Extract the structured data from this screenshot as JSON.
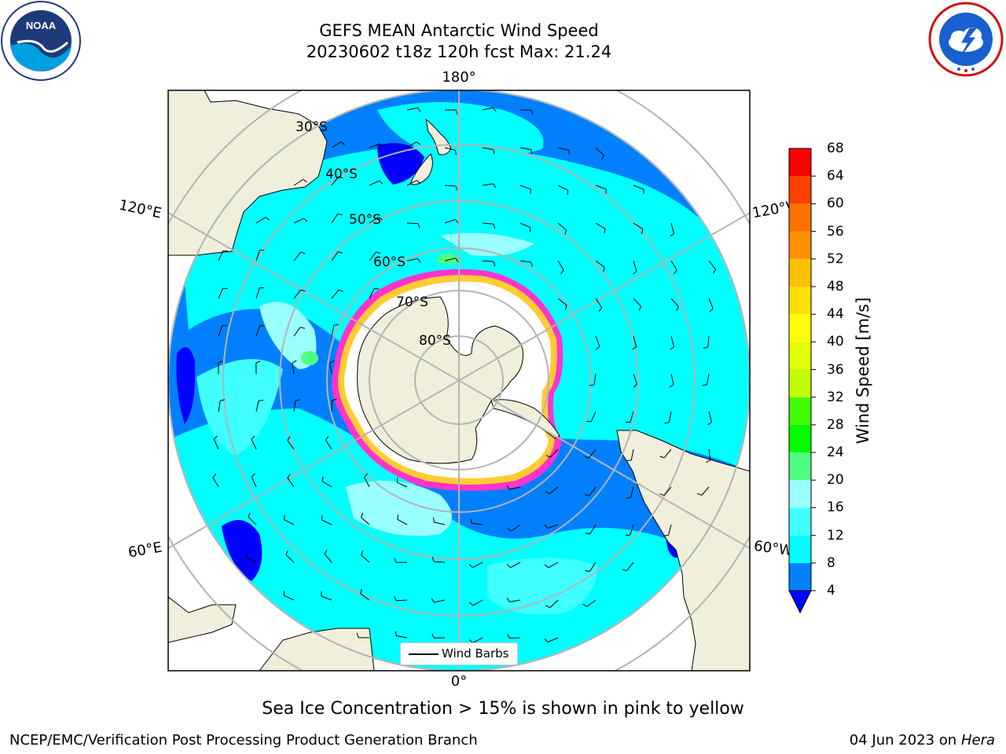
{
  "title": {
    "line1": "GEFS MEAN Antarctic Wind Speed",
    "line2": "20230602 t18z 120h fcst   Max: 21.24"
  },
  "logos": {
    "left": {
      "name": "noaa-logo",
      "text": "NOAA"
    },
    "right": {
      "name": "national-weather-service-logo",
      "text": "NATIONAL WEATHER SERVICE"
    }
  },
  "map": {
    "projection": "south-polar-stereographic",
    "longitude_labels": {
      "top": "180°",
      "bottom": "0°",
      "upper_left": "120°E",
      "upper_right": "120°W",
      "lower_left": "60°E",
      "lower_right": "60°W"
    },
    "latitude_labels": [
      "30°S",
      "40°S",
      "50°S",
      "60°S",
      "70°S",
      "80°S"
    ],
    "legend": {
      "label": "Wind Barbs"
    },
    "colors": {
      "land": "#efefdc",
      "ocean_dark": "#0000ff",
      "ocean_blue": "#0080ff",
      "ocean_cyan": "#00ffff",
      "ocean_light_cyan": "#80ffff",
      "sea_ice_pink": "#ff33cc",
      "sea_ice_yellow": "#ffcc33",
      "grid": "#b4b4b4"
    }
  },
  "colorbar": {
    "label": "Wind Speed [m/s]",
    "ticks": [
      "4",
      "8",
      "12",
      "16",
      "20",
      "24",
      "28",
      "32",
      "36",
      "40",
      "44",
      "48",
      "52",
      "56",
      "60",
      "64",
      "68"
    ],
    "colors": [
      "#0080ff",
      "#00ffff",
      "#40ffff",
      "#9affff",
      "#50ff80",
      "#00ff00",
      "#40ff00",
      "#c0ff00",
      "#e0ff00",
      "#ffff00",
      "#ffe000",
      "#ffc000",
      "#ff9000",
      "#ff7000",
      "#ff4000",
      "#ff0000"
    ],
    "extend_color": "#0000ff"
  },
  "caption": "Sea Ice Concentration > 15% is shown in pink to yellow",
  "footer": {
    "left": "NCEP/EMC/Verification Post Processing Product Generation Branch",
    "right_date": "04 Jun 2023 on",
    "right_host": "Hera"
  }
}
